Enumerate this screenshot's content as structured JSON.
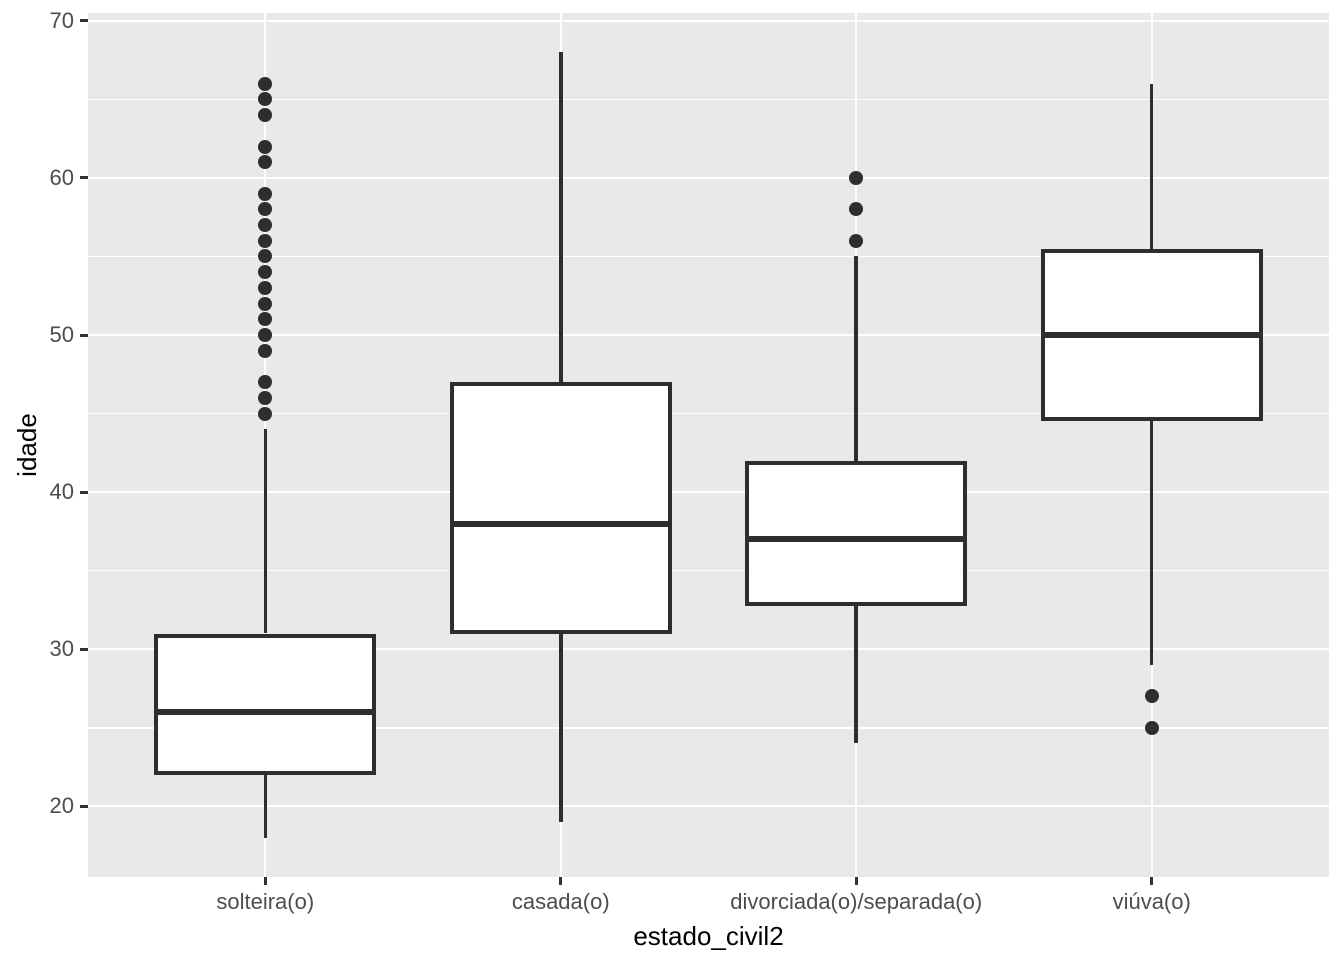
{
  "chart_data": {
    "type": "boxplot",
    "title": "",
    "xlabel": "estado_civil2",
    "ylabel": "idade",
    "categories": [
      "solteira(o)",
      "casada(o)",
      "divorciada(o)/separada(o)",
      "viúva(o)"
    ],
    "series": [
      {
        "name": "solteira(o)",
        "whisker_low": 18,
        "q1": 22,
        "median": 26,
        "q3": 31,
        "whisker_high": 44,
        "outliers": [
          45,
          46,
          47,
          49,
          50,
          51,
          52,
          53,
          54,
          55,
          56,
          57,
          58,
          59,
          61,
          62,
          64,
          65,
          66
        ]
      },
      {
        "name": "casada(o)",
        "whisker_low": 19,
        "q1": 31,
        "median": 38,
        "q3": 47,
        "whisker_high": 68,
        "outliers": []
      },
      {
        "name": "divorciada(o)/separada(o)",
        "whisker_low": 24,
        "q1": 32.75,
        "median": 37,
        "q3": 42,
        "whisker_high": 55,
        "outliers": [
          56,
          58,
          60
        ]
      },
      {
        "name": "viúva(o)",
        "whisker_low": 29,
        "q1": 44.5,
        "median": 50,
        "q3": 55.5,
        "whisker_high": 66,
        "outliers": [
          27,
          25
        ]
      }
    ],
    "y_axis": {
      "label": "idade",
      "tick_values": [
        20,
        30,
        40,
        50,
        60,
        70
      ],
      "minor_tick_values": [
        25,
        35,
        45,
        55,
        65
      ],
      "domain": [
        15.5,
        70.5
      ]
    },
    "x_axis": {
      "label": "estado_civil2",
      "domain": [
        0.4,
        4.6
      ],
      "category_positions": [
        1,
        2,
        3,
        4
      ],
      "box_width_units": 0.75
    },
    "grid": true,
    "legend": null
  },
  "theme": {
    "panel_background": "#e9e9e9",
    "grid_color": "#ffffff",
    "box_fill": "#ffffff",
    "box_stroke": "#2e2e2e",
    "outlier_color": "#2e2e2e",
    "tick_text_color": "#4d4d4d",
    "axis_title_color": "#000000",
    "tick_mark_color": "#333333"
  }
}
